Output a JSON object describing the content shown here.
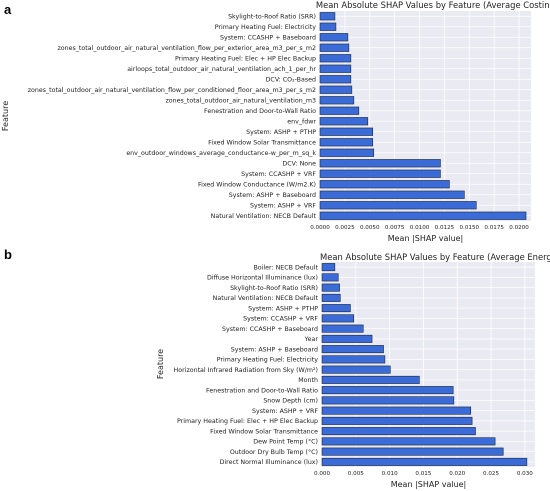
{
  "colors": {
    "bar": "#3b6bd6",
    "plot_background": "#eaeaf2",
    "grid": "#ffffff"
  },
  "chart_data": [
    {
      "panel_label": "a",
      "type": "bar",
      "orientation": "horizontal",
      "title": "Mean Absolute SHAP Values by Feature (Average Costing)",
      "xlabel": "Mean |SHAP value|",
      "ylabel": "Feature",
      "xlim": [
        0,
        0.0212
      ],
      "xticks": [
        0,
        0.0025,
        0.005,
        0.0075,
        0.01,
        0.0125,
        0.015,
        0.0175,
        0.02
      ],
      "xtick_labels": [
        "0.0000",
        "0.0025",
        "0.0050",
        "0.0075",
        "0.0100",
        "0.0125",
        "0.0150",
        "0.0175",
        "0.0200"
      ],
      "grid": true,
      "categories": [
        "Skylight-to-Roof Ratio (SRR)",
        "Primary Heating Fuel: Electricity",
        "System: CCASHP + Baseboard",
        "zones_total_outdoor_air_natural_ventilation_flow_per_exterior_area_m3_per_s_m2",
        "Primary Heating Fuel: Elec + HP Elec Backup",
        "airloops_total_outdoor_air_natural_ventilation_ach_1_per_hr",
        "DCV: CO₂-Based",
        "zones_total_outdoor_air_natural_ventilation_flow_per_conditioned_floor_area_m3_per_s_m2",
        "zones_total_outdoor_air_natural_ventilation_m3",
        "Fenestration and Door-to-Wall Ratio",
        "env_fdwr",
        "System: ASHP + PTHP",
        "Fixed Window Solar Transmittance",
        "env_outdoor_windows_average_conductance-w_per_m_sq_k",
        "DCV: None",
        "System: CCASHP + VRF",
        "Fixed Window Conductance (W/m2.K)",
        "System: ASHP + Baseboard",
        "System: ASHP + VRF",
        "Natural Ventilation: NECB Default"
      ],
      "values": [
        0.0015,
        0.0016,
        0.0028,
        0.0029,
        0.0031,
        0.0031,
        0.0031,
        0.0032,
        0.0034,
        0.0039,
        0.0048,
        0.0053,
        0.0053,
        0.0054,
        0.0121,
        0.0121,
        0.013,
        0.0145,
        0.0157,
        0.0207
      ]
    },
    {
      "panel_label": "b",
      "type": "bar",
      "orientation": "horizontal",
      "title": "Mean Absolute SHAP Values by Feature (Average Energy)",
      "xlabel": "Mean |SHAP value|",
      "ylabel": "Feature",
      "xlim": [
        0,
        0.0315
      ],
      "xticks": [
        0,
        0.005,
        0.01,
        0.015,
        0.02,
        0.025,
        0.03
      ],
      "xtick_labels": [
        "0.000",
        "0.005",
        "0.010",
        "0.015",
        "0.020",
        "0.025",
        "0.030"
      ],
      "grid": true,
      "categories": [
        "Boiler: NECB Default",
        "Diffuse Horizontal Illuminance (lux)",
        "Skylight-to-Roof Ratio (SRR)",
        "Natural Ventilation: NECB Default",
        "System: ASHP + PTHP",
        "System: CCASHP + VRF",
        "System: CCASHP + Baseboard",
        "Year",
        "System: ASHP + Baseboard",
        "Primary Heating Fuel: Electricity",
        "Horizontal Infrared Radiation from Sky (W/m²)",
        "Month",
        "Fenestration and Door-to-Wall Ratio",
        "Snow Depth (cm)",
        "System: ASHP + VRF",
        "Primary Heating Fuel: Elec + HP Elec Backup",
        "Fixed Window Solar Transmittance",
        "Dew Point Temp (°C)",
        "Outdoor Dry Bulb Temp (°C)",
        "Direct Normal Illuminance (lux)"
      ],
      "values": [
        0.0019,
        0.0024,
        0.0026,
        0.0027,
        0.0042,
        0.0047,
        0.0061,
        0.0074,
        0.0091,
        0.0093,
        0.0101,
        0.0144,
        0.0194,
        0.0195,
        0.022,
        0.0222,
        0.0227,
        0.0256,
        0.0268,
        0.0303
      ]
    }
  ]
}
